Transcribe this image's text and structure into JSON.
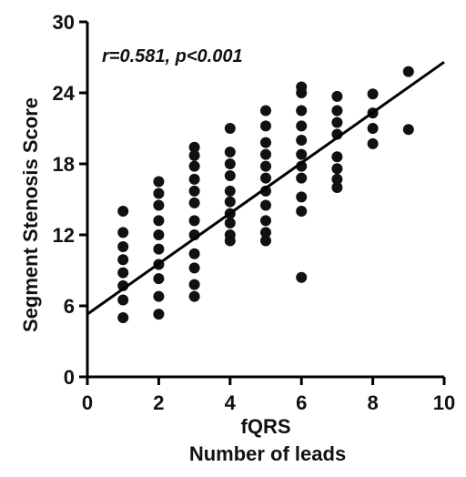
{
  "chart_data": {
    "type": "scatter",
    "title": "",
    "xlabel": "fQRS",
    "xlabel2": "Number of leads",
    "ylabel": "Segment Stenosis Score",
    "annotation": "r=0.581, p<0.001",
    "xlim": [
      0,
      10
    ],
    "ylim": [
      0,
      30
    ],
    "xticks": [
      0,
      2,
      4,
      6,
      8,
      10
    ],
    "yticks": [
      0,
      6,
      12,
      18,
      24,
      30
    ],
    "grid": false,
    "regression_line": {
      "x": [
        0,
        10
      ],
      "y": [
        5.3,
        26.6
      ]
    },
    "points": [
      [
        1,
        5
      ],
      [
        1,
        6.5
      ],
      [
        1,
        7.7
      ],
      [
        1,
        8.8
      ],
      [
        1,
        9.9
      ],
      [
        1,
        11
      ],
      [
        1,
        12.2
      ],
      [
        1,
        14
      ],
      [
        2,
        5.3
      ],
      [
        2,
        6.8
      ],
      [
        2,
        8.3
      ],
      [
        2,
        9.5
      ],
      [
        2,
        10.8
      ],
      [
        2,
        12
      ],
      [
        2,
        13.2
      ],
      [
        2,
        14.5
      ],
      [
        2,
        15.5
      ],
      [
        2,
        16.5
      ],
      [
        3,
        6.8
      ],
      [
        3,
        7.8
      ],
      [
        3,
        9.2
      ],
      [
        3,
        10.4
      ],
      [
        3,
        12
      ],
      [
        3,
        13.2
      ],
      [
        3,
        14.7
      ],
      [
        3,
        15.7
      ],
      [
        3,
        16.7
      ],
      [
        3,
        17.8
      ],
      [
        3,
        18.7
      ],
      [
        3,
        19.4
      ],
      [
        4,
        11.5
      ],
      [
        4,
        12
      ],
      [
        4,
        13
      ],
      [
        4,
        13.8
      ],
      [
        4,
        14.8
      ],
      [
        4,
        15.7
      ],
      [
        4,
        17
      ],
      [
        4,
        18
      ],
      [
        4,
        19
      ],
      [
        4,
        21
      ],
      [
        5,
        11.5
      ],
      [
        5,
        12.2
      ],
      [
        5,
        13.2
      ],
      [
        5,
        14.5
      ],
      [
        5,
        15.7
      ],
      [
        5,
        16.8
      ],
      [
        5,
        17.8
      ],
      [
        5,
        18.8
      ],
      [
        5,
        19.8
      ],
      [
        5,
        21.2
      ],
      [
        5,
        22.5
      ],
      [
        6,
        8.4
      ],
      [
        6,
        14
      ],
      [
        6,
        15.2
      ],
      [
        6,
        16.8
      ],
      [
        6,
        17.8
      ],
      [
        6,
        18.8
      ],
      [
        6,
        20
      ],
      [
        6,
        21.2
      ],
      [
        6,
        22.5
      ],
      [
        6,
        24
      ],
      [
        6,
        24.5
      ],
      [
        7,
        16
      ],
      [
        7,
        16.7
      ],
      [
        7,
        17.6
      ],
      [
        7,
        18.6
      ],
      [
        7,
        20.5
      ],
      [
        7,
        21.5
      ],
      [
        7,
        22.5
      ],
      [
        7,
        23.7
      ],
      [
        8,
        19.7
      ],
      [
        8,
        21
      ],
      [
        8,
        22.3
      ],
      [
        8,
        23.9
      ],
      [
        9,
        20.9
      ],
      [
        9,
        25.8
      ]
    ]
  }
}
